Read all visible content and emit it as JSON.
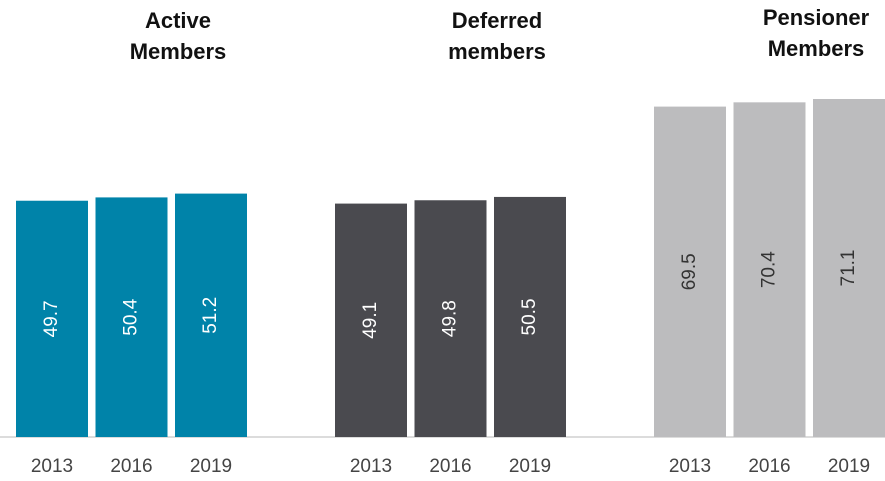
{
  "chart_data": [
    {
      "type": "bar",
      "title": "Active Members",
      "categories": [
        "2013",
        "2016",
        "2019"
      ],
      "values": [
        49.7,
        50.4,
        51.2
      ],
      "color": "#0083a9",
      "label_color": "#ffffff"
    },
    {
      "type": "bar",
      "title": "Deferred members",
      "categories": [
        "2013",
        "2016",
        "2019"
      ],
      "values": [
        49.1,
        49.8,
        50.5
      ],
      "color": "#4a4a4f",
      "label_color": "#ffffff"
    },
    {
      "type": "bar",
      "title": "Pensioner Members",
      "categories": [
        "2013",
        "2016",
        "2019"
      ],
      "values": [
        69.5,
        70.4,
        71.1
      ],
      "color": "#bcbcbe",
      "label_color": "#333333"
    }
  ]
}
